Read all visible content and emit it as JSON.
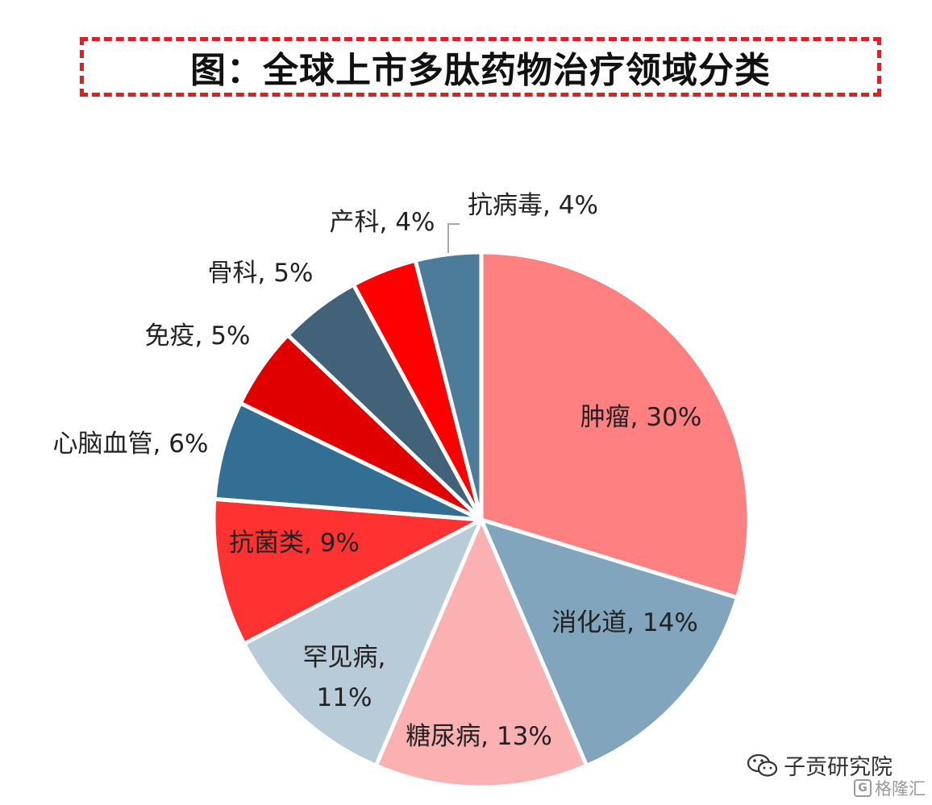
{
  "chart_data": {
    "type": "pie",
    "title": "图：全球上市多肽药物治疗领域分类",
    "slices": [
      {
        "name": "肿瘤",
        "value": 30,
        "color": "#ff8080"
      },
      {
        "name": "消化道",
        "value": 14,
        "color": "#81a5bd"
      },
      {
        "name": "糖尿病",
        "value": 13,
        "color": "#fbb0b2"
      },
      {
        "name": "罕见病",
        "value": 11,
        "color": "#b8cbd8"
      },
      {
        "name": "抗菌类",
        "value": 9,
        "color": "#ff3232"
      },
      {
        "name": "心脑血管",
        "value": 6,
        "color": "#336e94"
      },
      {
        "name": "免疫",
        "value": 5,
        "color": "#e00000"
      },
      {
        "name": "骨科",
        "value": 5,
        "color": "#42627a"
      },
      {
        "name": "产科",
        "value": 4,
        "color": "#ff0000"
      },
      {
        "name": "抗病毒",
        "value": 4,
        "color": "#4d7c9a"
      }
    ],
    "labels": [
      {
        "line1": "肿瘤, 30%"
      },
      {
        "line1": "消化道, 14%"
      },
      {
        "line1": "糖尿病, 13%"
      },
      {
        "line1": "罕见病,",
        "line2": "11%"
      },
      {
        "line1": "抗菌类, 9%"
      },
      {
        "line1": "心脑血管, 6%"
      },
      {
        "line1": "免疫, 5%"
      },
      {
        "line1": "骨科, 5%"
      },
      {
        "line1": "产科, 4%"
      },
      {
        "line1": "抗病毒, 4%"
      }
    ]
  },
  "watermark": {
    "text": "子贡研究院",
    "icon": "wechat-icon"
  },
  "brand": {
    "text": "格隆汇",
    "icon": "gelonghui-logo-icon",
    "mark": "G"
  }
}
